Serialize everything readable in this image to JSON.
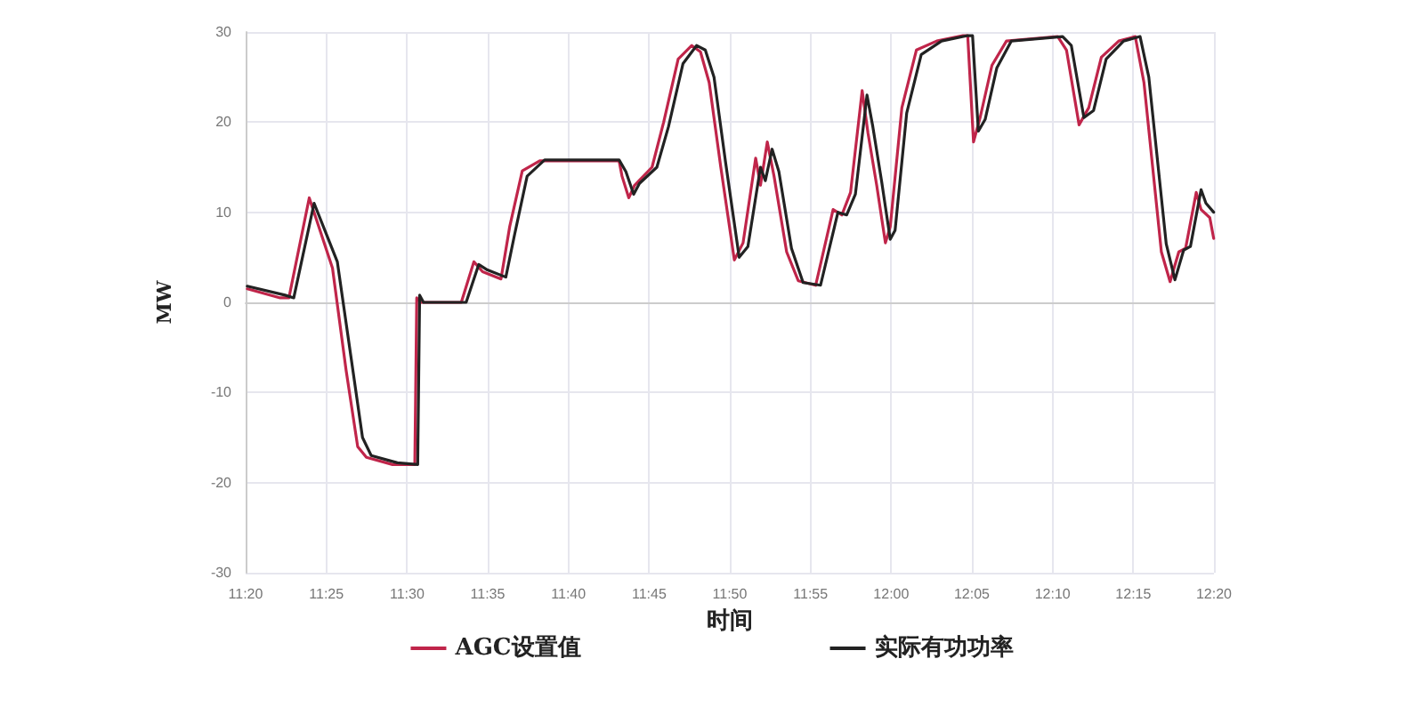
{
  "chart_data": {
    "type": "line",
    "xlabel": "时间",
    "ylabel": "MW",
    "xlim": [
      11.3333,
      12.3333
    ],
    "xticks": [
      {
        "value": 11.3333,
        "label": "11:20"
      },
      {
        "value": 11.4167,
        "label": "11:25"
      },
      {
        "value": 11.5,
        "label": "11:30"
      },
      {
        "value": 11.5833,
        "label": "11:35"
      },
      {
        "value": 11.6667,
        "label": "11:40"
      },
      {
        "value": 11.75,
        "label": "11:45"
      },
      {
        "value": 11.8333,
        "label": "11:50"
      },
      {
        "value": 11.9167,
        "label": "11:55"
      },
      {
        "value": 12,
        "label": "12:00"
      },
      {
        "value": 12.0833,
        "label": "12:05"
      },
      {
        "value": 12.1667,
        "label": "12:10"
      },
      {
        "value": 12.25,
        "label": "12:15"
      },
      {
        "value": 12.3333,
        "label": "12:20"
      }
    ],
    "ylim": [
      -30,
      30
    ],
    "yticks": [
      -30,
      -20,
      -10,
      0,
      10,
      20,
      30
    ],
    "grid": true,
    "legend": "bottom",
    "marker": "none",
    "line_style": "solid",
    "series": [
      {
        "name": "AGC设置值",
        "color": "#c0254a",
        "x": [
          11.335,
          11.369,
          11.378,
          11.399,
          11.423,
          11.437,
          11.449,
          11.458,
          11.485,
          11.508,
          11.51,
          11.514,
          11.556,
          11.569,
          11.578,
          11.597,
          11.606,
          11.619,
          11.637,
          11.719,
          11.722,
          11.729,
          11.735,
          11.753,
          11.765,
          11.78,
          11.794,
          11.803,
          11.812,
          11.824,
          11.838,
          11.847,
          11.86,
          11.865,
          11.872,
          11.879,
          11.892,
          11.904,
          11.922,
          11.94,
          11.949,
          11.958,
          11.97,
          11.976,
          11.985,
          11.994,
          11.999,
          12.011,
          12.026,
          12.047,
          12.074,
          12.079,
          12.085,
          12.092,
          12.104,
          12.119,
          12.172,
          12.181,
          12.194,
          12.204,
          12.217,
          12.235,
          12.252,
          12.261,
          12.279,
          12.288,
          12.297,
          12.304,
          12.315,
          12.32,
          12.329,
          12.333
        ],
        "values": [
          1.5,
          0.5,
          0.5,
          11.6,
          3.8,
          -7.5,
          -16,
          -17.2,
          -18,
          -18,
          0.5,
          0,
          0,
          4.5,
          3.4,
          2.6,
          8.4,
          14.6,
          15.7,
          15.7,
          14,
          11.6,
          13,
          15,
          20,
          27,
          28.5,
          27.8,
          24.4,
          15,
          4.7,
          6.6,
          16,
          13,
          17.8,
          14,
          5.6,
          2.4,
          1.9,
          10.3,
          9.7,
          12.2,
          23.5,
          18.8,
          13,
          6.6,
          8.4,
          21.6,
          28,
          29,
          29.6,
          29.6,
          17.8,
          20.6,
          26.3,
          29,
          29.5,
          28,
          19.7,
          21.6,
          27.2,
          29,
          29.5,
          24.4,
          5.6,
          2.3,
          5.6,
          6,
          12.2,
          10.3,
          9.4,
          7.1
        ]
      },
      {
        "name": "实际有功功率",
        "color": "#222222",
        "x": [
          11.335,
          11.374,
          11.383,
          11.404,
          11.428,
          11.442,
          11.454,
          11.463,
          11.49,
          11.511,
          11.513,
          11.517,
          11.561,
          11.574,
          11.583,
          11.602,
          11.611,
          11.624,
          11.642,
          11.719,
          11.726,
          11.734,
          11.74,
          11.758,
          11.77,
          11.785,
          11.799,
          11.808,
          11.817,
          11.829,
          11.843,
          11.852,
          11.865,
          11.87,
          11.877,
          11.884,
          11.897,
          11.909,
          11.927,
          11.945,
          11.954,
          11.963,
          11.975,
          11.981,
          11.99,
          11.999,
          12.004,
          12.016,
          12.031,
          12.052,
          12.079,
          12.084,
          12.09,
          12.097,
          12.109,
          12.124,
          12.177,
          12.186,
          12.199,
          12.209,
          12.222,
          12.24,
          12.257,
          12.266,
          12.284,
          12.293,
          12.302,
          12.309,
          12.32,
          12.325,
          12.333
        ],
        "values": [
          1.8,
          0.8,
          0.5,
          11,
          4.5,
          -6,
          -15,
          -17,
          -17.8,
          -18,
          0.8,
          0,
          0,
          4.2,
          3.6,
          2.8,
          7.5,
          14,
          15.8,
          15.8,
          14.5,
          12,
          13.2,
          15,
          19.5,
          26.5,
          28.5,
          28,
          25,
          15.5,
          5,
          6.2,
          15,
          13.5,
          17,
          14.5,
          6,
          2.2,
          1.9,
          10,
          9.7,
          12,
          23,
          19.5,
          13.5,
          7,
          8,
          21,
          27.5,
          29,
          29.6,
          29.6,
          19,
          20.3,
          26,
          29,
          29.5,
          28.5,
          20.5,
          21.3,
          27,
          29,
          29.5,
          25,
          6.5,
          2.5,
          5.8,
          6.2,
          12.5,
          11,
          10
        ]
      }
    ]
  }
}
